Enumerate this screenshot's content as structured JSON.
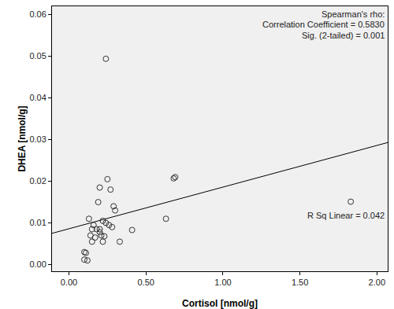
{
  "chart_data": {
    "type": "scatter",
    "x_label": "Cortisol [nmol/g]",
    "y_label": "DHEA [nmol/g]",
    "annotations": [
      "Spearman's rho:",
      "Correlation Coefficient = 0.5830",
      "Sig. (2-tailed) = 0.001",
      "R Sq Linear = 0.042"
    ],
    "series": [
      {
        "type": "scatter",
        "marker": "circle-open",
        "color": "#333333",
        "x": [
          0.24,
          0.1,
          0.11,
          0.1,
          0.12,
          0.13,
          0.14,
          0.15,
          0.16,
          0.15,
          0.17,
          0.18,
          0.19,
          0.2,
          0.2,
          0.21,
          0.22,
          0.22,
          0.23,
          0.25,
          0.26,
          0.27,
          0.28,
          0.29,
          0.3,
          0.33,
          0.41,
          0.63,
          0.68,
          0.69,
          1.83,
          0.24,
          0.2
        ],
        "values": [
          0.0494,
          0.003,
          0.0028,
          0.0012,
          0.001,
          0.011,
          0.007,
          0.0085,
          0.0095,
          0.0055,
          0.0065,
          0.0085,
          0.015,
          0.0185,
          0.0078,
          0.007,
          0.0105,
          0.0055,
          0.0068,
          0.0205,
          0.0095,
          0.018,
          0.009,
          0.014,
          0.013,
          0.0055,
          0.0083,
          0.011,
          0.0207,
          0.021,
          0.0151,
          0.01,
          0.0085
        ]
      },
      {
        "type": "line",
        "line_style": "solid",
        "color": "#000000",
        "x": [
          -0.11,
          2.07
        ],
        "values": [
          0.0075,
          0.0293
        ]
      }
    ],
    "xlim": [
      -0.11,
      2.07
    ],
    "ylim": [
      -0.0016,
      0.062
    ],
    "xticks": [
      {
        "value": 0,
        "label": "0.00"
      },
      {
        "value": 0.5,
        "label": "0.50"
      },
      {
        "value": 1,
        "label": "1.00"
      },
      {
        "value": 1.5,
        "label": "1.50"
      },
      {
        "value": 2,
        "label": "2.00"
      }
    ],
    "yticks": [
      {
        "value": 0,
        "label": "0.00"
      },
      0.01,
      0.02,
      0.03,
      0.04,
      0.05,
      0.06
    ],
    "grid": false
  }
}
